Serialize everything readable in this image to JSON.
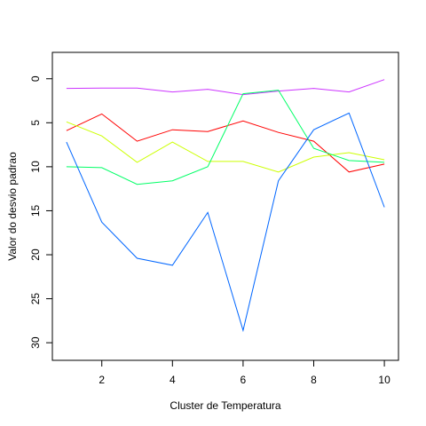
{
  "chart_data": {
    "type": "line",
    "title": "",
    "xlabel": "Cluster de Temperatura",
    "ylabel": "Valor do desvio padrao",
    "x": [
      1,
      2,
      3,
      4,
      5,
      6,
      7,
      8,
      9,
      10
    ],
    "xlim": [
      0.6,
      10.4
    ],
    "ylim": [
      32,
      -3
    ],
    "y_axis_inverted": true,
    "xticks": [
      2,
      4,
      6,
      8,
      10
    ],
    "yticks": [
      0,
      5,
      10,
      15,
      20,
      25,
      30
    ],
    "grid": false,
    "legend": "none",
    "series": [
      {
        "color": "#CC33FF",
        "values": [
          1.1,
          1.05,
          1.05,
          1.5,
          1.2,
          1.8,
          1.4,
          1.1,
          1.5,
          0.1
        ]
      },
      {
        "color": "#FF0000",
        "values": [
          5.9,
          4.0,
          7.1,
          5.8,
          6.0,
          4.8,
          6.1,
          7.1,
          10.6,
          9.7
        ]
      },
      {
        "color": "#CCFF00",
        "values": [
          4.9,
          6.5,
          9.5,
          7.2,
          9.4,
          9.4,
          10.6,
          8.9,
          8.4,
          9.2
        ]
      },
      {
        "color": "#00FF66",
        "values": [
          10.0,
          10.1,
          12.0,
          11.6,
          10.0,
          1.7,
          1.3,
          7.9,
          9.3,
          9.5
        ]
      },
      {
        "color": "#0066FF",
        "values": [
          7.2,
          16.3,
          20.4,
          21.2,
          15.2,
          28.6,
          11.6,
          5.8,
          3.9,
          14.6
        ]
      }
    ]
  }
}
